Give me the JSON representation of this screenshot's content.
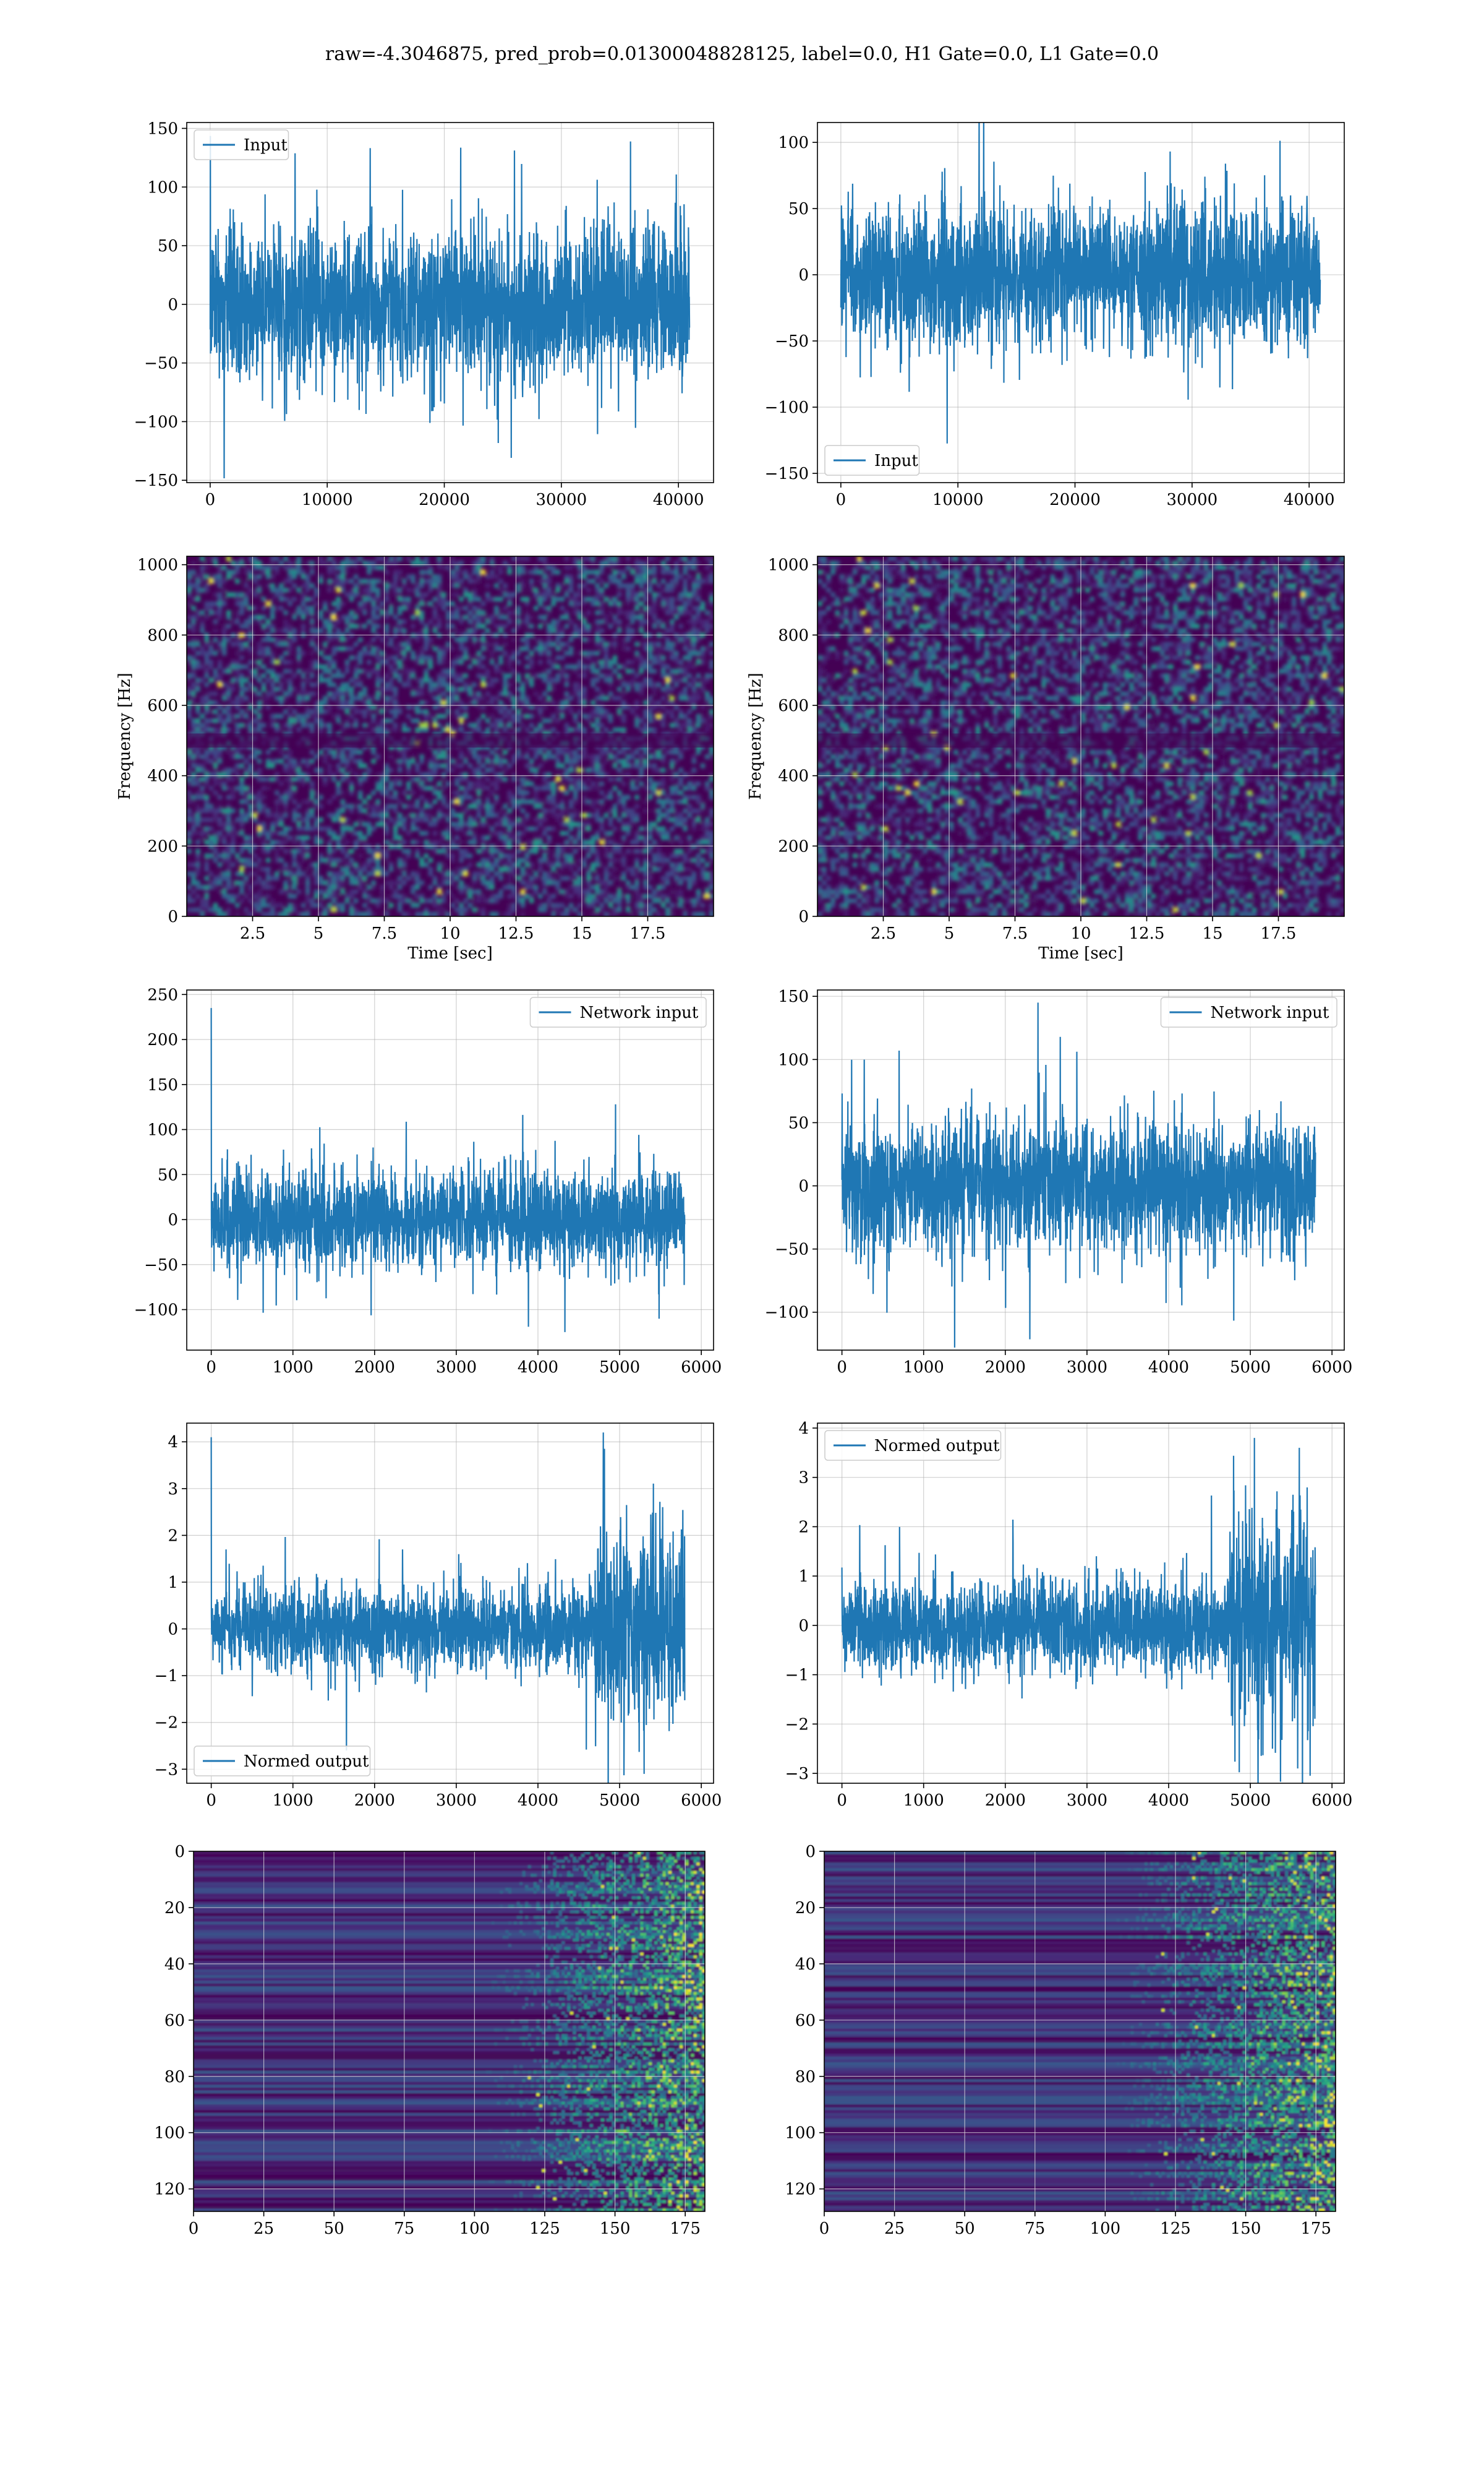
{
  "title": "raw=-4.3046875, pred_prob=0.01300048828125, label=0.0, H1 Gate=0.0, L1 Gate=0.0",
  "colors": {
    "line": "#1f77b4",
    "grid": "#b0b0b0",
    "viridis_low": "#440154",
    "viridis_mid": "#21918c",
    "viridis_high": "#fde725"
  },
  "chart_data": [
    {
      "id": "input-h1",
      "type": "line",
      "legend": "Input",
      "legend_loc": "upper left",
      "xlim": [
        -2000,
        43000
      ],
      "ylim": [
        -152,
        155
      ],
      "xticks": [
        0,
        10000,
        20000,
        30000,
        40000
      ],
      "yticks": [
        -150,
        -100,
        -50,
        0,
        50,
        100,
        150
      ],
      "signal": {
        "n": 40960,
        "sigma": 30,
        "amp": 1.0,
        "spikes": []
      }
    },
    {
      "id": "input-l1",
      "type": "line",
      "legend": "Input",
      "legend_loc": "lower left",
      "xlim": [
        -2000,
        43000
      ],
      "ylim": [
        -157,
        115
      ],
      "xticks": [
        0,
        10000,
        20000,
        30000,
        40000
      ],
      "yticks": [
        -150,
        -100,
        -50,
        0,
        50,
        100
      ],
      "signal": {
        "n": 40960,
        "sigma": 25,
        "amp": 1.0,
        "spikes": []
      }
    },
    {
      "id": "spec-h1",
      "type": "heatmap",
      "xlabel": "Time [sec]",
      "ylabel": "Frequency [Hz]",
      "xlim": [
        0,
        20
      ],
      "ylim": [
        0,
        1024
      ],
      "xticks": [
        2.5,
        5.0,
        7.5,
        10.0,
        12.5,
        15.0,
        17.5
      ],
      "yticks": [
        0,
        200,
        400,
        600,
        800,
        1000
      ]
    },
    {
      "id": "spec-l1",
      "type": "heatmap",
      "xlabel": "Time [sec]",
      "ylabel": "Frequency [Hz]",
      "xlim": [
        0,
        20
      ],
      "ylim": [
        0,
        1024
      ],
      "xticks": [
        2.5,
        5.0,
        7.5,
        10.0,
        12.5,
        15.0,
        17.5
      ],
      "yticks": [
        0,
        200,
        400,
        600,
        800,
        1000
      ]
    },
    {
      "id": "net-h1",
      "type": "line",
      "legend": "Network input",
      "legend_loc": "upper right",
      "xlim": [
        -300,
        6150
      ],
      "ylim": [
        -145,
        255
      ],
      "xticks": [
        0,
        1000,
        2000,
        3000,
        4000,
        5000,
        6000
      ],
      "yticks": [
        -100,
        -50,
        0,
        50,
        100,
        150,
        200,
        250
      ],
      "signal": {
        "n": 5800,
        "sigma": 25,
        "amp": 1.0,
        "spikes": [
          [
            0,
            235
          ],
          [
            4330,
            -125
          ],
          [
            4950,
            128
          ]
        ]
      }
    },
    {
      "id": "net-l1",
      "type": "line",
      "legend": "Network input",
      "legend_loc": "upper right",
      "xlim": [
        -300,
        6150
      ],
      "ylim": [
        -130,
        155
      ],
      "xticks": [
        0,
        1000,
        2000,
        3000,
        4000,
        5000,
        6000
      ],
      "yticks": [
        -100,
        -50,
        0,
        50,
        100,
        150
      ],
      "signal": {
        "n": 5800,
        "sigma": 24,
        "amp": 1.0,
        "spikes": [
          [
            1380,
            -128
          ],
          [
            2400,
            145
          ],
          [
            700,
            107
          ]
        ]
      }
    },
    {
      "id": "norm-h1",
      "type": "line",
      "legend": "Normed output",
      "legend_loc": "lower left",
      "xlim": [
        -300,
        6150
      ],
      "ylim": [
        -3.3,
        4.4
      ],
      "xticks": [
        0,
        1000,
        2000,
        3000,
        4000,
        5000,
        6000
      ],
      "yticks": [
        -3,
        -2,
        -1,
        0,
        1,
        2,
        3,
        4
      ],
      "signal": {
        "n": 5800,
        "sigma": 0.42,
        "amp": 2.3,
        "onset": 4700,
        "spikes": [
          [
            0,
            4.1
          ],
          [
            4800,
            4.2
          ],
          [
            5300,
            -3.1
          ]
        ]
      }
    },
    {
      "id": "norm-l1",
      "type": "line",
      "legend": "Normed output",
      "legend_loc": "upper left",
      "xlim": [
        -300,
        6150
      ],
      "ylim": [
        -3.2,
        4.1
      ],
      "xticks": [
        0,
        1000,
        2000,
        3000,
        4000,
        5000,
        6000
      ],
      "yticks": [
        -3,
        -2,
        -1,
        0,
        1,
        2,
        3,
        4
      ],
      "signal": {
        "n": 5800,
        "sigma": 0.42,
        "amp": 2.3,
        "onset": 4750,
        "spikes": [
          [
            5050,
            3.8
          ],
          [
            5600,
            3.6
          ],
          [
            5580,
            -2.9
          ]
        ]
      }
    },
    {
      "id": "feat-h1",
      "type": "heatmap",
      "xlim": [
        0,
        182
      ],
      "ylim": [
        128,
        0
      ],
      "xticks": [
        0,
        25,
        50,
        75,
        100,
        125,
        150,
        175
      ],
      "yticks": [
        0,
        20,
        40,
        60,
        80,
        100,
        120
      ]
    },
    {
      "id": "feat-l1",
      "type": "heatmap",
      "xlim": [
        0,
        182
      ],
      "ylim": [
        128,
        0
      ],
      "xticks": [
        0,
        25,
        50,
        75,
        100,
        125,
        150,
        175
      ],
      "yticks": [
        0,
        20,
        40,
        60,
        80,
        100,
        120
      ]
    }
  ]
}
